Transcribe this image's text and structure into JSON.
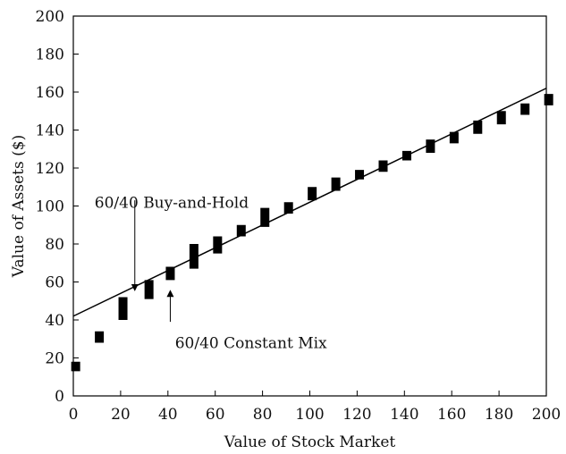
{
  "chart_data": {
    "type": "scatter",
    "xlabel": "Value of Stock Market",
    "ylabel": "Value of Assets ($)",
    "xlim": [
      0,
      200
    ],
    "ylim": [
      0,
      200
    ],
    "xticks": [
      "0",
      "20",
      "40",
      "60",
      "80",
      "100",
      "120",
      "140",
      "160",
      "180",
      "200"
    ],
    "yticks": [
      "0",
      "20",
      "40",
      "60",
      "80",
      "100",
      "120",
      "140",
      "160",
      "180",
      "200"
    ],
    "grid": false,
    "legend": "none",
    "series": [
      {
        "marker": "square",
        "color": "#000000",
        "points": [
          {
            "x": 1,
            "ylow": 13,
            "yhigh": 18
          },
          {
            "x": 11,
            "ylow": 28,
            "yhigh": 34
          },
          {
            "x": 21,
            "ylow": 40,
            "yhigh": 52
          },
          {
            "x": 32,
            "ylow": 51,
            "yhigh": 61
          },
          {
            "x": 41,
            "ylow": 61,
            "yhigh": 68
          },
          {
            "x": 51,
            "ylow": 67,
            "yhigh": 80
          },
          {
            "x": 61,
            "ylow": 75,
            "yhigh": 84
          },
          {
            "x": 71,
            "ylow": 84,
            "yhigh": 90
          },
          {
            "x": 81,
            "ylow": 89,
            "yhigh": 99
          },
          {
            "x": 91,
            "ylow": 96,
            "yhigh": 102
          },
          {
            "x": 101,
            "ylow": 103,
            "yhigh": 110
          },
          {
            "x": 111,
            "ylow": 108,
            "yhigh": 115
          },
          {
            "x": 121,
            "ylow": 114,
            "yhigh": 119
          },
          {
            "x": 131,
            "ylow": 118,
            "yhigh": 124
          },
          {
            "x": 141,
            "ylow": 124,
            "yhigh": 129
          },
          {
            "x": 151,
            "ylow": 128,
            "yhigh": 135
          },
          {
            "x": 161,
            "ylow": 133,
            "yhigh": 139
          },
          {
            "x": 171,
            "ylow": 138,
            "yhigh": 145
          },
          {
            "x": 181,
            "ylow": 143,
            "yhigh": 150
          },
          {
            "x": 191,
            "ylow": 148,
            "yhigh": 154
          },
          {
            "x": 201,
            "ylow": 153,
            "yhigh": 159
          }
        ]
      },
      {
        "style": "line",
        "color": "#000000",
        "x": [
          0,
          200
        ],
        "y": [
          42,
          162
        ]
      }
    ],
    "annotations": [
      {
        "text": "60/40 Buy-and-Hold",
        "arrow_to": [
          26,
          57
        ],
        "text_at": [
          9,
          102
        ],
        "arrow_from": [
          26,
          103
        ]
      },
      {
        "text": "60/40 Constant Mix",
        "arrow_to": [
          41,
          54
        ],
        "text_at": [
          43,
          28
        ],
        "arrow_from": [
          41,
          39
        ]
      }
    ]
  }
}
